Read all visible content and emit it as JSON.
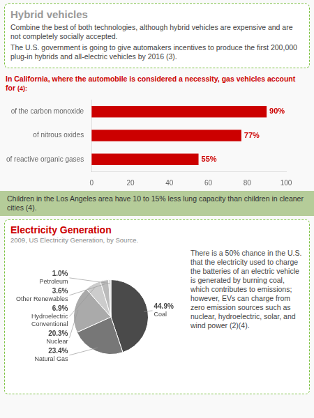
{
  "chart_data": [
    {
      "type": "bar",
      "orientation": "horizontal",
      "title": "In California, where the automobile is considered a necessity, gas vehicles account for",
      "subtitle": "(4):",
      "categories": [
        "of the carbon monoxide",
        "of nitrous oxides",
        "of reactive organic gases"
      ],
      "values": [
        90,
        77,
        55
      ],
      "value_labels": [
        "90%",
        "77%",
        "55%"
      ],
      "data_labels": true,
      "color": "#cc0000",
      "xlim": [
        0,
        100
      ],
      "xticks": [
        0,
        20,
        40,
        60,
        80,
        100
      ],
      "grid": false,
      "annotations": [
        "Hybrid vehicles",
        "Combine the best of both technologies, although hybrid vehicles are expensive and are not completely socially accepted.",
        "The U.S. government is going to give automakers incentives to produce the first 200,000 plug-in hybrids and all-electric vehicles by 2016 (3)."
      ]
    },
    {
      "type": "pie",
      "title": "Electricity Generation",
      "subtitle": "2009, US Electricity Generation, by Source.",
      "categories": [
        "Coal",
        "Natural Gas",
        "Nuclear",
        "Hydroelectric\nConventional",
        "Other Renewables",
        "Petroleum"
      ],
      "values": [
        44.9,
        23.4,
        20.3,
        6.9,
        3.6,
        1.0
      ],
      "value_labels": [
        "44.9%",
        "23.4%",
        "20.3%",
        "6.9%",
        "3.6%",
        "1.0%"
      ],
      "data_labels": true,
      "colors": [
        "#4a4a4a",
        "#777777",
        "#aaaaaa",
        "#cccccc",
        "#bbbbbb",
        "#dddddd"
      ],
      "annotations": [
        "Children in the Los Angeles area have 10 to 15% less lung capacity than children in cleaner cities (4).",
        "There is a 50% chance in the U.S. that the electricity used to charge the batteries of an electric vehicle is generated by burning coal, which contributes to emissions; however, EVs can charge from zero emission sources such as nuclear, hydroelectric, solar, and wind power (2)(4)."
      ]
    }
  ]
}
